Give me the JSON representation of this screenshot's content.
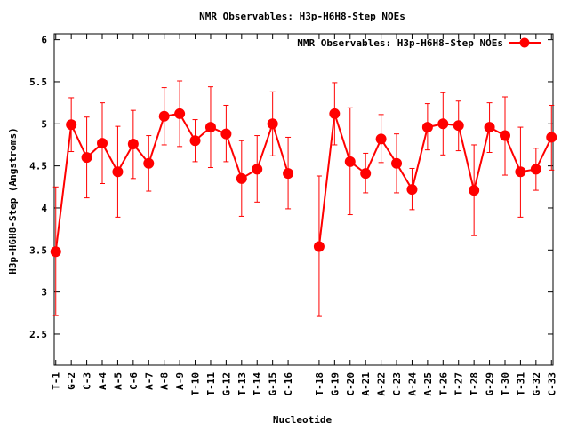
{
  "chart_data": {
    "type": "line",
    "title": "NMR Observables: H3p-H6H8-Step NOEs",
    "xlabel": "Nucleotide",
    "ylabel": "H3p-H6H8-Step (Angstroms)",
    "ylim": [
      2.13,
      6.07
    ],
    "yticks": [
      2.5,
      3,
      3.5,
      4,
      4.5,
      5,
      5.5,
      6
    ],
    "xlim": [
      0.9,
      33.1
    ],
    "legend_placement": "top-right",
    "grid": false,
    "series": [
      {
        "name": "NMR Observables: H3p-H6H8-Step NOEs",
        "color": "#ff0000",
        "points": [
          {
            "label": "T-1",
            "x": 1,
            "y": 3.48,
            "lo": 2.72,
            "hi": 4.25
          },
          {
            "label": "G-2",
            "x": 2,
            "y": 4.99,
            "lo": 4.67,
            "hi": 5.31
          },
          {
            "label": "C-3",
            "x": 3,
            "y": 4.6,
            "lo": 4.12,
            "hi": 5.08
          },
          {
            "label": "A-4",
            "x": 4,
            "y": 4.77,
            "lo": 4.29,
            "hi": 5.25
          },
          {
            "label": "A-5",
            "x": 5,
            "y": 4.43,
            "lo": 3.89,
            "hi": 4.97
          },
          {
            "label": "C-6",
            "x": 6,
            "y": 4.76,
            "lo": 4.35,
            "hi": 5.16
          },
          {
            "label": "A-7",
            "x": 7,
            "y": 4.53,
            "lo": 4.2,
            "hi": 4.86
          },
          {
            "label": "A-8",
            "x": 8,
            "y": 5.09,
            "lo": 4.75,
            "hi": 5.43
          },
          {
            "label": "A-9",
            "x": 9,
            "y": 5.12,
            "lo": 4.73,
            "hi": 5.51
          },
          {
            "label": "T-10",
            "x": 10,
            "y": 4.8,
            "lo": 4.55,
            "hi": 5.05
          },
          {
            "label": "T-11",
            "x": 11,
            "y": 4.96,
            "lo": 4.48,
            "hi": 5.44
          },
          {
            "label": "G-12",
            "x": 12,
            "y": 4.88,
            "lo": 4.55,
            "hi": 5.22
          },
          {
            "label": "T-13",
            "x": 13,
            "y": 4.35,
            "lo": 3.9,
            "hi": 4.8
          },
          {
            "label": "T-14",
            "x": 14,
            "y": 4.46,
            "lo": 4.07,
            "hi": 4.86
          },
          {
            "label": "G-15",
            "x": 15,
            "y": 5.0,
            "lo": 4.62,
            "hi": 5.38
          },
          {
            "label": "C-16",
            "x": 16,
            "y": 4.41,
            "lo": 3.99,
            "hi": 4.84
          },
          {
            "label": "T-18",
            "x": 18,
            "y": 3.54,
            "lo": 2.71,
            "hi": 4.38
          },
          {
            "label": "G-19",
            "x": 19,
            "y": 5.12,
            "lo": 4.75,
            "hi": 5.49
          },
          {
            "label": "C-20",
            "x": 20,
            "y": 4.55,
            "lo": 3.92,
            "hi": 5.19
          },
          {
            "label": "A-21",
            "x": 21,
            "y": 4.41,
            "lo": 4.18,
            "hi": 4.65
          },
          {
            "label": "A-22",
            "x": 22,
            "y": 4.82,
            "lo": 4.54,
            "hi": 5.11
          },
          {
            "label": "C-23",
            "x": 23,
            "y": 4.53,
            "lo": 4.18,
            "hi": 4.88
          },
          {
            "label": "A-24",
            "x": 24,
            "y": 4.22,
            "lo": 3.98,
            "hi": 4.47
          },
          {
            "label": "A-25",
            "x": 25,
            "y": 4.96,
            "lo": 4.69,
            "hi": 5.24
          },
          {
            "label": "T-26",
            "x": 26,
            "y": 5.0,
            "lo": 4.63,
            "hi": 5.37
          },
          {
            "label": "T-27",
            "x": 27,
            "y": 4.98,
            "lo": 4.68,
            "hi": 5.27
          },
          {
            "label": "T-28",
            "x": 28,
            "y": 4.21,
            "lo": 3.67,
            "hi": 4.75
          },
          {
            "label": "G-29",
            "x": 29,
            "y": 4.96,
            "lo": 4.66,
            "hi": 5.25
          },
          {
            "label": "T-30",
            "x": 30,
            "y": 4.86,
            "lo": 4.39,
            "hi": 5.32
          },
          {
            "label": "T-31",
            "x": 31,
            "y": 4.43,
            "lo": 3.89,
            "hi": 4.96
          },
          {
            "label": "G-32",
            "x": 32,
            "y": 4.46,
            "lo": 4.21,
            "hi": 4.71
          },
          {
            "label": "C-33",
            "x": 33,
            "y": 4.84,
            "lo": 4.45,
            "hi": 5.22
          }
        ]
      }
    ]
  }
}
